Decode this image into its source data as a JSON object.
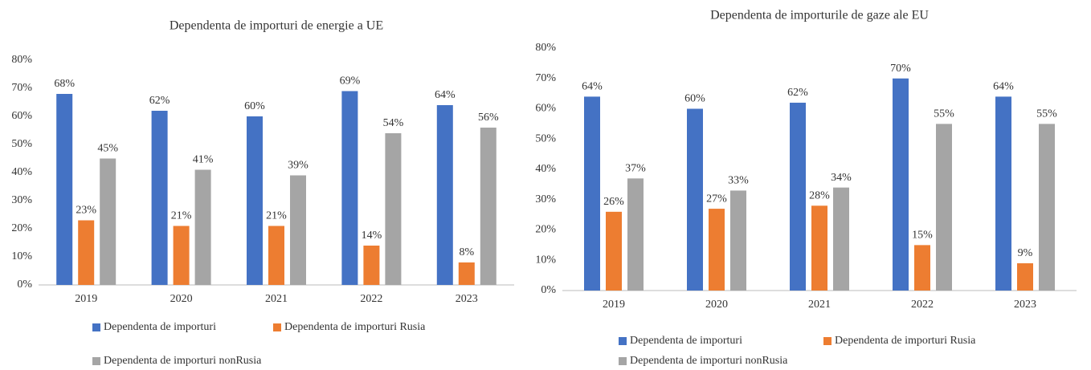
{
  "chart_data": [
    {
      "type": "bar",
      "title": "Dependenta de importuri de energie a UE",
      "categories": [
        "2019",
        "2020",
        "2021",
        "2022",
        "2023"
      ],
      "series": [
        {
          "name": "Dependenta de importuri",
          "color": "#4472c4",
          "values": [
            68,
            62,
            60,
            69,
            64
          ],
          "value_labels": [
            "68%",
            "62%",
            "60%",
            "69%",
            "64%"
          ]
        },
        {
          "name": "Dependenta de importuri Rusia",
          "color": "#ed7d31",
          "values": [
            23,
            21,
            21,
            14,
            8
          ],
          "value_labels": [
            "23%",
            "21%",
            "21%",
            "14%",
            "8%"
          ]
        },
        {
          "name": "Dependenta de importuri nonRusia",
          "color": "#a5a5a5",
          "values": [
            45,
            41,
            39,
            54,
            56
          ],
          "value_labels": [
            "45%",
            "41%",
            "39%",
            "54%",
            "56%"
          ]
        }
      ],
      "ylim": [
        0,
        80
      ],
      "yticks": [
        {
          "value": 0,
          "label": "0%"
        },
        {
          "value": 10,
          "label": "10%"
        },
        {
          "value": 20,
          "label": "20%"
        },
        {
          "value": 30,
          "label": "30%"
        },
        {
          "value": 40,
          "label": "40%"
        },
        {
          "value": 50,
          "label": "50%"
        },
        {
          "value": 60,
          "label": "60%"
        },
        {
          "value": 70,
          "label": "70%"
        },
        {
          "value": 80,
          "label": "80%"
        }
      ],
      "grid": false,
      "legend": "bottom"
    },
    {
      "type": "bar",
      "title": "Dependenta de importurile de gaze ale EU",
      "categories": [
        "2019",
        "2020",
        "2021",
        "2022",
        "2023"
      ],
      "series": [
        {
          "name": "Dependenta de importuri",
          "color": "#4472c4",
          "values": [
            64,
            60,
            62,
            70,
            64
          ],
          "value_labels": [
            "64%",
            "60%",
            "62%",
            "70%",
            "64%"
          ]
        },
        {
          "name": "Dependenta de importuri Rusia",
          "color": "#ed7d31",
          "values": [
            26,
            27,
            28,
            15,
            9
          ],
          "value_labels": [
            "26%",
            "27%",
            "28%",
            "15%",
            "9%"
          ]
        },
        {
          "name": "Dependenta de importuri nonRusia",
          "color": "#a5a5a5",
          "values": [
            37,
            33,
            34,
            55,
            55
          ],
          "value_labels": [
            "37%",
            "33%",
            "34%",
            "55%",
            "55%"
          ]
        }
      ],
      "ylim": [
        0,
        80
      ],
      "yticks": [
        {
          "value": 0,
          "label": "0%"
        },
        {
          "value": 10,
          "label": "10%"
        },
        {
          "value": 20,
          "label": "20%"
        },
        {
          "value": 30,
          "label": "30%"
        },
        {
          "value": 40,
          "label": "40%"
        },
        {
          "value": 50,
          "label": "50%"
        },
        {
          "value": 60,
          "label": "60%"
        },
        {
          "value": 70,
          "label": "70%"
        },
        {
          "value": 80,
          "label": "80%"
        }
      ],
      "grid": false,
      "legend": "bottom"
    }
  ]
}
